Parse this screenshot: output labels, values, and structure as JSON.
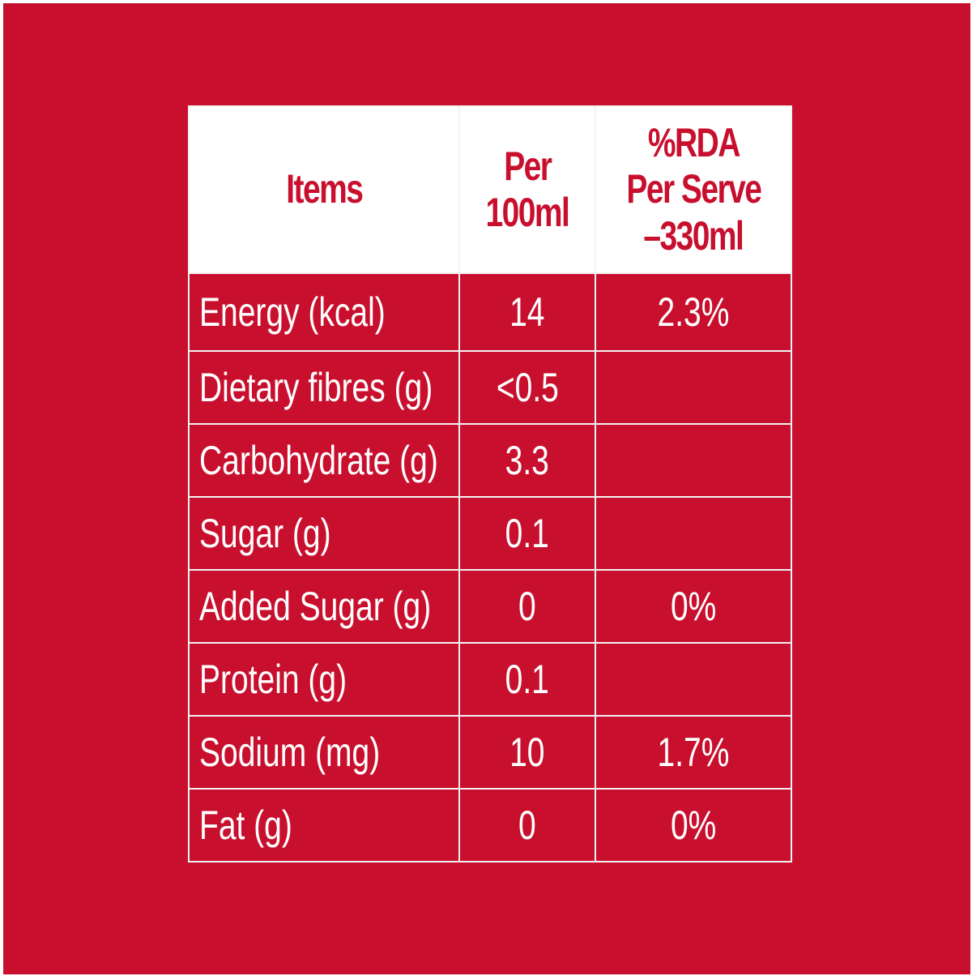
{
  "table": {
    "headers": {
      "items": "Items",
      "per_100ml_line1": "Per",
      "per_100ml_line2": "100ml",
      "rda_line1": "%RDA",
      "rda_line2": "Per Serve",
      "rda_line3": "–330ml"
    },
    "rows": [
      {
        "item": "Energy (kcal)",
        "per_100ml": "14",
        "rda": "2.3%"
      },
      {
        "item": "Dietary fibres (g)",
        "per_100ml": "<0.5",
        "rda": ""
      },
      {
        "item": "Carbohydrate (g)",
        "per_100ml": "3.3",
        "rda": ""
      },
      {
        "item": "Sugar (g)",
        "per_100ml": "0.1",
        "rda": ""
      },
      {
        "item": "Added Sugar (g)",
        "per_100ml": "0",
        "rda": "0%"
      },
      {
        "item": "Protein (g)",
        "per_100ml": "0.1",
        "rda": ""
      },
      {
        "item": "Sodium (mg)",
        "per_100ml": "10",
        "rda": "1.7%"
      },
      {
        "item": "Fat (g)",
        "per_100ml": "0",
        "rda": "0%"
      }
    ]
  },
  "colors": {
    "background": "#c8102e",
    "header_background": "#ffffff",
    "header_text": "#c8102e",
    "body_text": "#ffffff",
    "grid": "#f3f3f3"
  }
}
